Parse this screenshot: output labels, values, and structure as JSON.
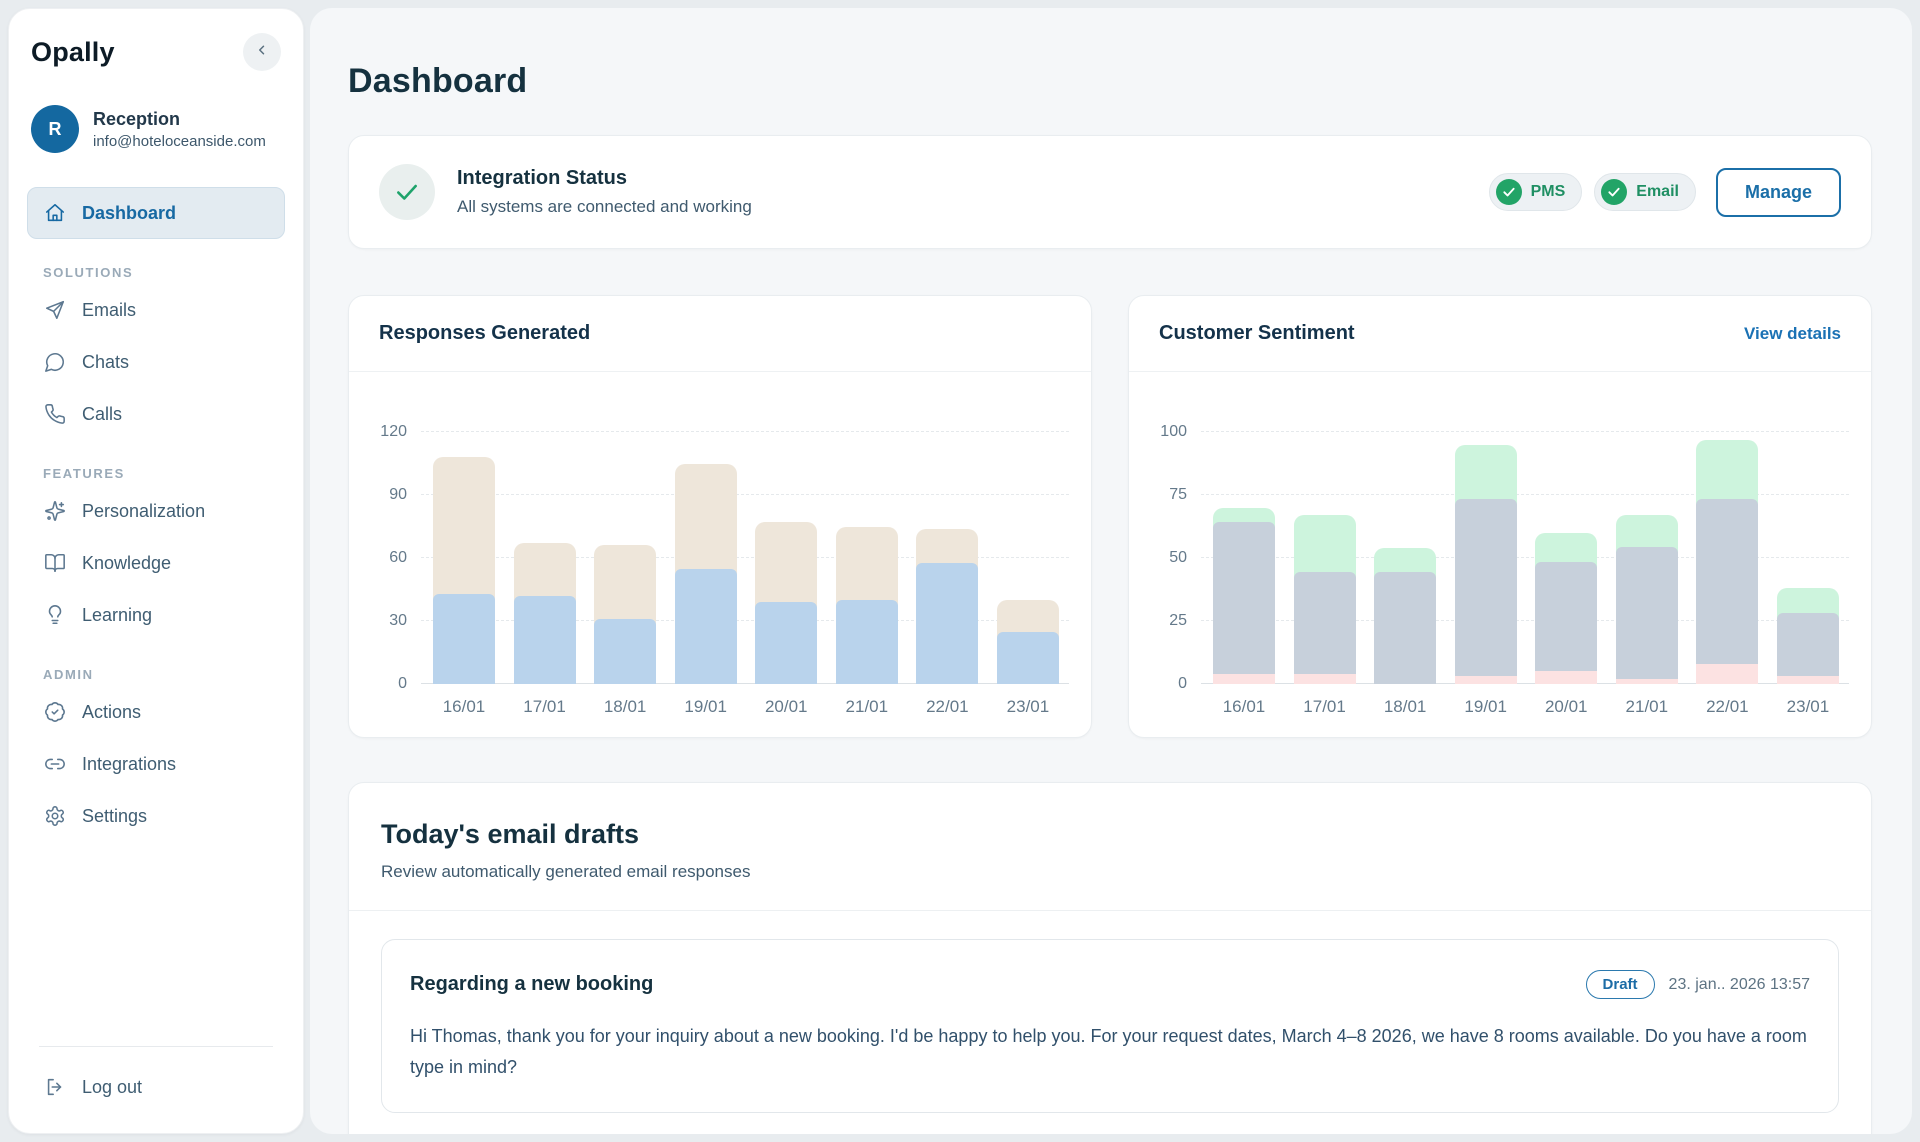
{
  "sidebar": {
    "logo": "Opally",
    "user": {
      "initial": "R",
      "name": "Reception",
      "email": "info@hoteloceanside.com"
    },
    "primary": {
      "label": "Dashboard",
      "icon": "home"
    },
    "sections": [
      {
        "label": "SOLUTIONS",
        "items": [
          {
            "label": "Emails",
            "icon": "send"
          },
          {
            "label": "Chats",
            "icon": "chat"
          },
          {
            "label": "Calls",
            "icon": "phone"
          }
        ]
      },
      {
        "label": "FEATURES",
        "items": [
          {
            "label": "Personalization",
            "icon": "sparkles"
          },
          {
            "label": "Knowledge",
            "icon": "book"
          },
          {
            "label": "Learning",
            "icon": "bulb"
          }
        ]
      },
      {
        "label": "ADMIN",
        "items": [
          {
            "label": "Actions",
            "icon": "badge-check"
          },
          {
            "label": "Integrations",
            "icon": "link"
          },
          {
            "label": "Settings",
            "icon": "gear"
          }
        ]
      }
    ],
    "logout_label": "Log out"
  },
  "header": {
    "title": "Dashboard"
  },
  "integration": {
    "title": "Integration Status",
    "subtitle": "All systems are connected and working",
    "badges": [
      "PMS",
      "Email"
    ],
    "manage_label": "Manage"
  },
  "chart_data": [
    {
      "type": "bar",
      "stacked": true,
      "title": "Responses Generated",
      "categories": [
        "16/01",
        "17/01",
        "18/01",
        "19/01",
        "20/01",
        "21/01",
        "22/01",
        "23/01"
      ],
      "series": [
        {
          "name": "automated",
          "color": "#b9d3ec",
          "rounded_top": true,
          "values": [
            40,
            39,
            28,
            52,
            36,
            37,
            55,
            22
          ]
        },
        {
          "name": "total-remainder",
          "color": "#eee6da",
          "rounded_top": true,
          "values": [
            68,
            28,
            38,
            53,
            41,
            38,
            19,
            18
          ]
        }
      ],
      "totals": [
        108,
        67,
        66,
        105,
        77,
        75,
        74,
        40
      ],
      "ylim": [
        0,
        120
      ],
      "yticks": [
        0,
        30,
        60,
        90,
        120
      ],
      "grid": "dashed-horizontal",
      "legend": "none"
    },
    {
      "type": "bar",
      "stacked": true,
      "title": "Customer Sentiment",
      "link": "View details",
      "categories": [
        "16/01",
        "17/01",
        "18/01",
        "19/01",
        "20/01",
        "21/01",
        "22/01",
        "23/01"
      ],
      "series": [
        {
          "name": "negative",
          "color": "#fce2e2",
          "rounded_top": false,
          "values": [
            4,
            4,
            0,
            3,
            5,
            2,
            8,
            3
          ]
        },
        {
          "name": "neutral",
          "color": "#c7d0db",
          "rounded_top": true,
          "values": [
            58,
            38,
            42,
            68,
            41,
            50,
            63,
            23
          ]
        },
        {
          "name": "positive",
          "color": "#cdf4dd",
          "rounded_top": true,
          "values": [
            8,
            25,
            12,
            24,
            14,
            15,
            26,
            12
          ]
        }
      ],
      "totals": [
        70,
        67,
        54,
        95,
        60,
        67,
        97,
        38
      ],
      "ylim": [
        0,
        100
      ],
      "yticks": [
        0,
        25,
        50,
        75,
        100
      ],
      "grid": "dashed-horizontal",
      "legend": "none"
    }
  ],
  "drafts": {
    "title": "Today's email drafts",
    "subtitle": "Review automatically generated email responses",
    "card": {
      "title": "Regarding a new booking",
      "badge": "Draft",
      "timestamp": "23. jan.. 2026 13:57",
      "body": "Hi Thomas, thank you for your inquiry about a new booking. I'd be happy to help you. For your request dates, March 4–8 2026, we have 8 rooms available. Do you have a room type in mind?"
    }
  },
  "colors": {
    "accent_blue": "#1b6fa8",
    "navy_text": "#15313f",
    "green_status": "#22a467",
    "sidebar_bg": "#ffffff",
    "main_bg": "#f5f7f9",
    "bar_blue": "#b9d3ec",
    "bar_beige": "#eee6da",
    "bar_green": "#cdf4dd",
    "bar_gray": "#c7d0db",
    "bar_pink": "#fce2e2"
  }
}
